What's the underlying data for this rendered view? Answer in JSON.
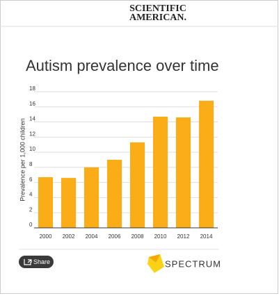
{
  "header": {
    "brand_line1": "SCIENTIFIC",
    "brand_line2": "AMERICAN."
  },
  "chart_data": {
    "type": "bar",
    "title": "Autism prevalence over time",
    "y_label": "Prevalence per 1,000 children",
    "categories": [
      "2000",
      "2002",
      "2004",
      "2006",
      "2008",
      "2010",
      "2012",
      "2014"
    ],
    "values": [
      6.7,
      6.6,
      8.0,
      9.0,
      11.3,
      14.7,
      14.6,
      16.8
    ],
    "color": "#fbad18",
    "ylim": [
      0,
      18
    ],
    "yticks": [
      0,
      2,
      4,
      6,
      8,
      10,
      12,
      14,
      16,
      18
    ],
    "grid": true
  },
  "share_label": "Share",
  "source_logo": "SPECTRUM"
}
